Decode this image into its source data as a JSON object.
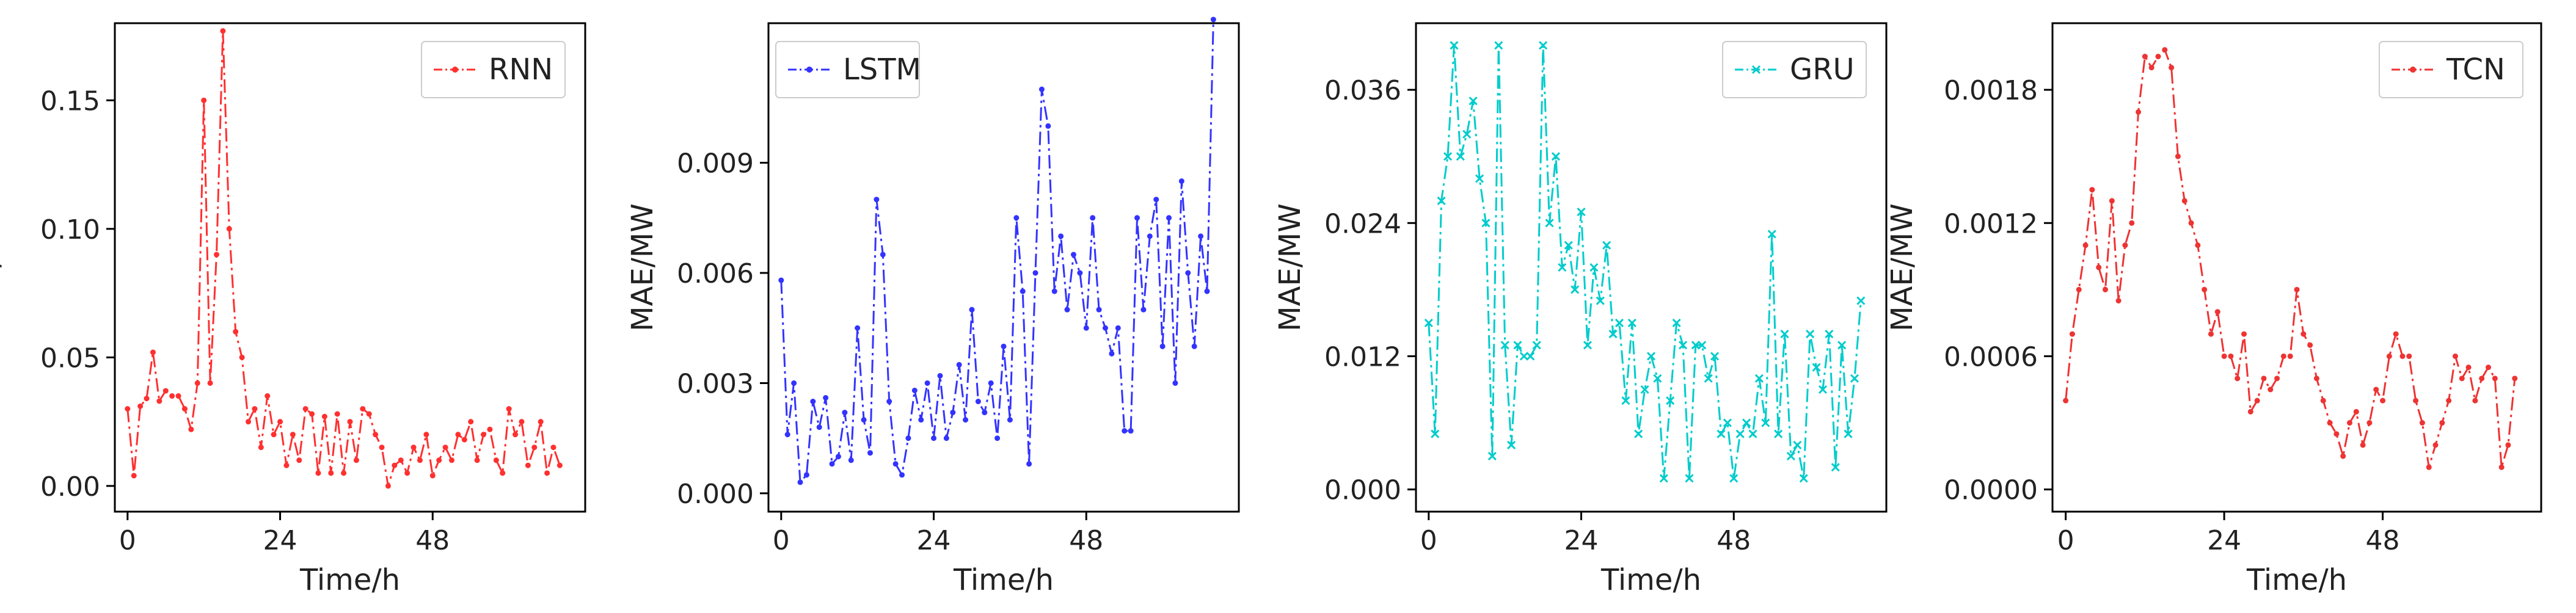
{
  "chart_data": [
    {
      "type": "line",
      "xlabel": "Time/h",
      "ylabel": "MAE/MW",
      "xlim": [
        -2,
        72
      ],
      "ylim": [
        -0.01,
        0.18
      ],
      "xticks": [
        0,
        24,
        48
      ],
      "xtick_labels": [
        "0",
        "24",
        "48"
      ],
      "yticks": [
        0.0,
        0.05,
        0.1,
        0.15
      ],
      "ytick_labels": [
        "0.00",
        "0.05",
        "0.10",
        "0.15"
      ],
      "legend_position": "top-right",
      "series": [
        {
          "name": "RNN",
          "color": "#ff3030",
          "marker": "dot",
          "x": [
            0,
            1,
            2,
            3,
            4,
            5,
            6,
            7,
            8,
            9,
            10,
            11,
            12,
            13,
            14,
            15,
            16,
            17,
            18,
            19,
            20,
            21,
            22,
            23,
            24,
            25,
            26,
            27,
            28,
            29,
            30,
            31,
            32,
            33,
            34,
            35,
            36,
            37,
            38,
            39,
            40,
            41,
            42,
            43,
            44,
            45,
            46,
            47,
            48,
            49,
            50,
            51,
            52,
            53,
            54,
            55,
            56,
            57,
            58,
            59,
            60,
            61,
            62,
            63,
            64,
            65,
            66,
            67,
            68
          ],
          "y": [
            0.03,
            0.004,
            0.031,
            0.034,
            0.052,
            0.033,
            0.037,
            0.035,
            0.035,
            0.03,
            0.022,
            0.04,
            0.15,
            0.04,
            0.09,
            0.177,
            0.1,
            0.06,
            0.05,
            0.025,
            0.03,
            0.015,
            0.035,
            0.02,
            0.025,
            0.008,
            0.02,
            0.01,
            0.03,
            0.028,
            0.005,
            0.027,
            0.005,
            0.028,
            0.005,
            0.025,
            0.01,
            0.03,
            0.028,
            0.02,
            0.015,
            0.0,
            0.008,
            0.01,
            0.005,
            0.015,
            0.01,
            0.02,
            0.004,
            0.01,
            0.015,
            0.01,
            0.02,
            0.018,
            0.025,
            0.01,
            0.02,
            0.022,
            0.01,
            0.005,
            0.03,
            0.02,
            0.025,
            0.008,
            0.015,
            0.025,
            0.005,
            0.015,
            0.008
          ]
        }
      ]
    },
    {
      "type": "line",
      "xlabel": "Time/h",
      "ylabel": "MAE/MW",
      "xlim": [
        -2,
        72
      ],
      "ylim": [
        -0.0005,
        0.0128
      ],
      "xticks": [
        0,
        24,
        48
      ],
      "xtick_labels": [
        "0",
        "24",
        "48"
      ],
      "yticks": [
        0.0,
        0.003,
        0.006,
        0.009
      ],
      "ytick_labels": [
        "0.000",
        "0.003",
        "0.006",
        "0.009"
      ],
      "legend_position": "top-left",
      "series": [
        {
          "name": "LSTM",
          "color": "#3333ff",
          "marker": "dot",
          "x": [
            0,
            1,
            2,
            3,
            4,
            5,
            6,
            7,
            8,
            9,
            10,
            11,
            12,
            13,
            14,
            15,
            16,
            17,
            18,
            19,
            20,
            21,
            22,
            23,
            24,
            25,
            26,
            27,
            28,
            29,
            30,
            31,
            32,
            33,
            34,
            35,
            36,
            37,
            38,
            39,
            40,
            41,
            42,
            43,
            44,
            45,
            46,
            47,
            48,
            49,
            50,
            51,
            52,
            53,
            54,
            55,
            56,
            57,
            58,
            59,
            60,
            61,
            62,
            63,
            64,
            65,
            66,
            67,
            68
          ],
          "y": [
            0.0058,
            0.0016,
            0.003,
            0.0003,
            0.0005,
            0.0025,
            0.0018,
            0.0026,
            0.0008,
            0.001,
            0.0022,
            0.0009,
            0.0045,
            0.002,
            0.0011,
            0.008,
            0.0065,
            0.0025,
            0.0008,
            0.0005,
            0.0015,
            0.0028,
            0.002,
            0.003,
            0.0015,
            0.0032,
            0.0015,
            0.0022,
            0.0035,
            0.002,
            0.005,
            0.0025,
            0.0022,
            0.003,
            0.0015,
            0.004,
            0.002,
            0.0075,
            0.0055,
            0.0008,
            0.006,
            0.011,
            0.01,
            0.0055,
            0.007,
            0.005,
            0.0065,
            0.006,
            0.0045,
            0.0075,
            0.005,
            0.0045,
            0.0038,
            0.0045,
            0.0017,
            0.0017,
            0.0075,
            0.005,
            0.007,
            0.008,
            0.004,
            0.0075,
            0.003,
            0.0085,
            0.006,
            0.004,
            0.007,
            0.0055,
            0.0129
          ]
        }
      ]
    },
    {
      "type": "line",
      "xlabel": "Time/h",
      "ylabel": "MAE/MW",
      "xlim": [
        -2,
        72
      ],
      "ylim": [
        -0.002,
        0.042
      ],
      "xticks": [
        0,
        24,
        48
      ],
      "xtick_labels": [
        "0",
        "24",
        "48"
      ],
      "yticks": [
        0.0,
        0.012,
        0.024,
        0.036
      ],
      "ytick_labels": [
        "0.000",
        "0.012",
        "0.024",
        "0.036"
      ],
      "legend_position": "top-right",
      "series": [
        {
          "name": "GRU",
          "color": "#00cccc",
          "marker": "x",
          "x": [
            0,
            1,
            2,
            3,
            4,
            5,
            6,
            7,
            8,
            9,
            10,
            11,
            12,
            13,
            14,
            15,
            16,
            17,
            18,
            19,
            20,
            21,
            22,
            23,
            24,
            25,
            26,
            27,
            28,
            29,
            30,
            31,
            32,
            33,
            34,
            35,
            36,
            37,
            38,
            39,
            40,
            41,
            42,
            43,
            44,
            45,
            46,
            47,
            48,
            49,
            50,
            51,
            52,
            53,
            54,
            55,
            56,
            57,
            58,
            59,
            60,
            61,
            62,
            63,
            64,
            65,
            66,
            67,
            68
          ],
          "y": [
            0.015,
            0.005,
            0.026,
            0.03,
            0.04,
            0.03,
            0.032,
            0.035,
            0.028,
            0.024,
            0.003,
            0.04,
            0.013,
            0.004,
            0.013,
            0.012,
            0.012,
            0.013,
            0.04,
            0.024,
            0.03,
            0.02,
            0.022,
            0.018,
            0.025,
            0.013,
            0.02,
            0.017,
            0.022,
            0.014,
            0.015,
            0.008,
            0.015,
            0.005,
            0.009,
            0.012,
            0.01,
            0.001,
            0.008,
            0.015,
            0.013,
            0.001,
            0.013,
            0.013,
            0.01,
            0.012,
            0.005,
            0.006,
            0.001,
            0.005,
            0.006,
            0.005,
            0.01,
            0.006,
            0.023,
            0.005,
            0.014,
            0.003,
            0.004,
            0.001,
            0.014,
            0.011,
            0.009,
            0.014,
            0.002,
            0.013,
            0.005,
            0.01,
            0.017
          ]
        }
      ]
    },
    {
      "type": "line",
      "xlabel": "Time/h",
      "ylabel": "MAE/MW",
      "xlim": [
        -2,
        72
      ],
      "ylim": [
        -0.0001,
        0.0021
      ],
      "xticks": [
        0,
        24,
        48
      ],
      "xtick_labels": [
        "0",
        "24",
        "48"
      ],
      "yticks": [
        0.0,
        0.0006,
        0.0012,
        0.0018
      ],
      "ytick_labels": [
        "0.0000",
        "0.0006",
        "0.0012",
        "0.0018"
      ],
      "legend_position": "top-right",
      "series": [
        {
          "name": "TCN",
          "color": "#ee3333",
          "marker": "dot",
          "x": [
            0,
            1,
            2,
            3,
            4,
            5,
            6,
            7,
            8,
            9,
            10,
            11,
            12,
            13,
            14,
            15,
            16,
            17,
            18,
            19,
            20,
            21,
            22,
            23,
            24,
            25,
            26,
            27,
            28,
            29,
            30,
            31,
            32,
            33,
            34,
            35,
            36,
            37,
            38,
            39,
            40,
            41,
            42,
            43,
            44,
            45,
            46,
            47,
            48,
            49,
            50,
            51,
            52,
            53,
            54,
            55,
            56,
            57,
            58,
            59,
            60,
            61,
            62,
            63,
            64,
            65,
            66,
            67,
            68
          ],
          "y": [
            0.0004,
            0.0007,
            0.0009,
            0.0011,
            0.00135,
            0.001,
            0.0009,
            0.0013,
            0.00085,
            0.0011,
            0.0012,
            0.0017,
            0.00195,
            0.0019,
            0.00195,
            0.00198,
            0.0019,
            0.0015,
            0.0013,
            0.0012,
            0.0011,
            0.0009,
            0.0007,
            0.0008,
            0.0006,
            0.0006,
            0.0005,
            0.0007,
            0.00035,
            0.0004,
            0.0005,
            0.00045,
            0.0005,
            0.0006,
            0.0006,
            0.0009,
            0.0007,
            0.00065,
            0.0005,
            0.0004,
            0.0003,
            0.00025,
            0.00015,
            0.0003,
            0.00035,
            0.0002,
            0.0003,
            0.00045,
            0.0004,
            0.0006,
            0.0007,
            0.0006,
            0.0006,
            0.0004,
            0.0003,
            0.0001,
            0.0002,
            0.0003,
            0.0004,
            0.0006,
            0.0005,
            0.00055,
            0.0004,
            0.0005,
            0.00055,
            0.0005,
            0.0001,
            0.0002,
            0.0005
          ]
        }
      ]
    }
  ]
}
